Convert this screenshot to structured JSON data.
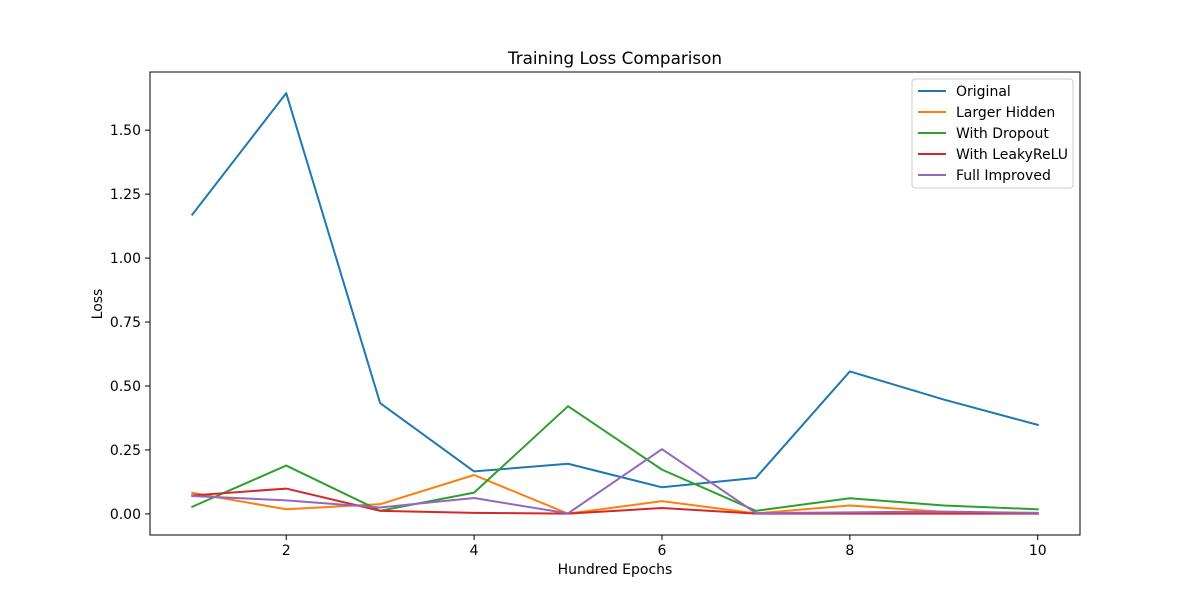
{
  "chart_data": {
    "type": "line",
    "title": "Training Loss Comparison",
    "xlabel": "Hundred Epochs",
    "ylabel": "Loss",
    "xlim": [
      0.55,
      10.45
    ],
    "ylim": [
      -0.0825,
      1.7275
    ],
    "xticks": [
      2,
      4,
      6,
      8,
      10
    ],
    "xtick_labels": [
      "2",
      "4",
      "6",
      "8",
      "10"
    ],
    "yticks": [
      0.0,
      0.25,
      0.5,
      0.75,
      1.0,
      1.25,
      1.5
    ],
    "ytick_labels": [
      "0.00",
      "0.25",
      "0.50",
      "0.75",
      "1.00",
      "1.25",
      "1.50"
    ],
    "grid": false,
    "legend_position": "upper right",
    "x": [
      1,
      2,
      3,
      4,
      5,
      6,
      7,
      8,
      9,
      10
    ],
    "series": [
      {
        "name": "Original",
        "color": "#1f77b4",
        "values": [
          1.17,
          1.645,
          0.433,
          0.166,
          0.196,
          0.104,
          0.141,
          0.557,
          0.447,
          0.348
        ]
      },
      {
        "name": "Larger Hidden",
        "color": "#ff7f0e",
        "values": [
          0.082,
          0.018,
          0.038,
          0.152,
          0.001,
          0.05,
          0.002,
          0.033,
          0.008,
          0.001
        ]
      },
      {
        "name": "With Dropout",
        "color": "#2ca02c",
        "values": [
          0.028,
          0.189,
          0.012,
          0.083,
          0.421,
          0.173,
          0.012,
          0.061,
          0.033,
          0.018
        ]
      },
      {
        "name": "With LeakyReLU",
        "color": "#d62728",
        "values": [
          0.072,
          0.099,
          0.012,
          0.004,
          0.001,
          0.023,
          0.001,
          0.001,
          0.001,
          0.001
        ]
      },
      {
        "name": "Full Improved",
        "color": "#9467bd",
        "values": [
          0.07,
          0.053,
          0.025,
          0.062,
          0.002,
          0.253,
          0.003,
          0.006,
          0.009,
          0.004
        ]
      }
    ]
  }
}
